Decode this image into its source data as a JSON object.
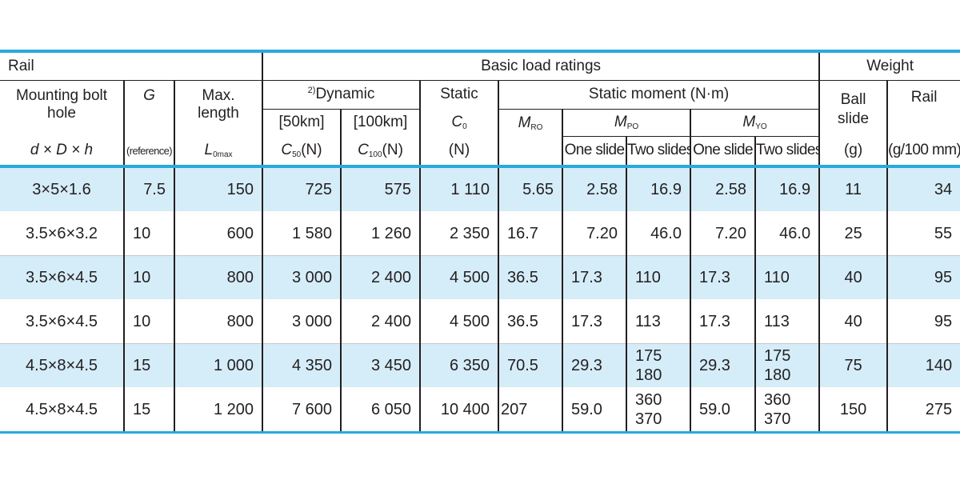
{
  "header": {
    "rail": "Rail",
    "basic_load_ratings": "Basic load ratings",
    "weight": "Weight",
    "mounting_bolt": "Mounting bolt",
    "hole": "hole",
    "g": "G",
    "max": "Max.",
    "length": "length",
    "dynamic_sup": "2)",
    "dynamic": "Dynamic",
    "static": "Static",
    "static_moment": "Static moment (N·m)",
    "ball": "Ball",
    "slide": "slide",
    "rail_weight": "Rail",
    "km50": "[50km]",
    "km100": "[100km]",
    "c0": "C",
    "c0_sub": "0",
    "mro": "M",
    "mro_sub": "RO",
    "mpo": "M",
    "mpo_sub": "PO",
    "myo": "M",
    "myo_sub": "YO",
    "dDh": "d × D × h",
    "reference": "(reference)",
    "lomax": "L",
    "lomax_sub": "0max",
    "c50": "C",
    "c50_sub": "50",
    "c50_unit": "(N)",
    "c100": "C",
    "c100_sub": "100",
    "c100_unit": "(N)",
    "n_unit": "(N)",
    "one_slide_p": "One slide",
    "two_slides_p": "Two slides",
    "one_slide_y": "One slide",
    "two_slides_y": "Two slides",
    "g_unit": "(g)",
    "g100_unit": "(g/100 mm)"
  },
  "rows": [
    {
      "bolt": "3×5×1.6",
      "g": "7.5",
      "lmax": "150",
      "c50": "725",
      "c100": "575",
      "c0": "1 110",
      "mro": "5.65",
      "mpo1": "2.58",
      "mpo2a": "16.9",
      "mpo2b": "",
      "myo1": "2.58",
      "myo2a": "16.9",
      "myo2b": "",
      "ball": "11",
      "rail": "34"
    },
    {
      "bolt": "3.5×6×3.2",
      "g": "10",
      "lmax": "600",
      "c50": "1 580",
      "c100": "1 260",
      "c0": "2 350",
      "mro": "16.7",
      "mpo1": "7.20",
      "mpo2a": "46.0",
      "mpo2b": "",
      "myo1": "7.20",
      "myo2a": "46.0",
      "myo2b": "",
      "ball": "25",
      "rail": "55"
    },
    {
      "bolt": "3.5×6×4.5",
      "g": "10",
      "lmax": "800",
      "c50": "3 000",
      "c100": "2 400",
      "c0": "4 500",
      "mro": "36.5",
      "mpo1": "17.3",
      "mpo2a": "110",
      "mpo2b": "",
      "myo1": "17.3",
      "myo2a": "110",
      "myo2b": "",
      "ball": "40",
      "rail": "95"
    },
    {
      "bolt": "3.5×6×4.5",
      "g": "10",
      "lmax": "800",
      "c50": "3 000",
      "c100": "2 400",
      "c0": "4 500",
      "mro": "36.5",
      "mpo1": "17.3",
      "mpo2a": "113",
      "mpo2b": "",
      "myo1": "17.3",
      "myo2a": "113",
      "myo2b": "",
      "ball": "40",
      "rail": "95"
    },
    {
      "bolt": "4.5×8×4.5",
      "g": "15",
      "lmax": "1 000",
      "c50": "4 350",
      "c100": "3 450",
      "c0": "6 350",
      "mro": "70.5",
      "mpo1": "29.3",
      "mpo2a": "175",
      "mpo2b": "180",
      "myo1": "29.3",
      "myo2a": "175",
      "myo2b": "180",
      "ball": "75",
      "rail": "140"
    },
    {
      "bolt": "4.5×8×4.5",
      "g": "15",
      "lmax": "1 200",
      "c50": "7 600",
      "c100": "6 050",
      "c0": "10 400",
      "mro": "207",
      "mpo1": "59.0",
      "mpo2a": "360",
      "mpo2b": "370",
      "myo1": "59.0",
      "myo2a": "360",
      "myo2b": "370",
      "ball": "150",
      "rail": "275"
    }
  ],
  "colors": {
    "accent": "#29a8e0",
    "row_tint": "#d5edf9"
  }
}
